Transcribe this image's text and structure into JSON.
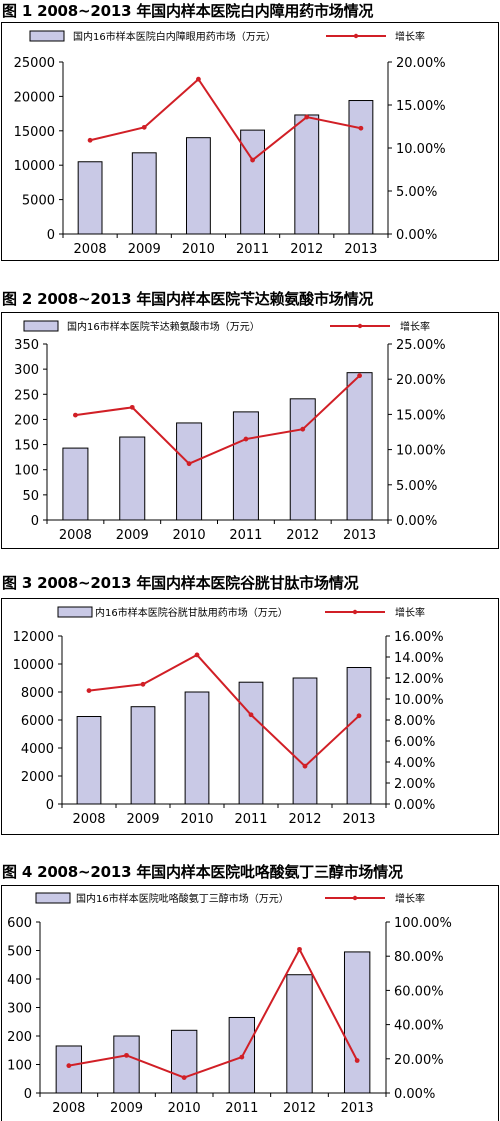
{
  "chart_data": [
    {
      "type": "bar",
      "title": "图 1  2008~2013 年国内样本医院白内障用药市场情况",
      "categories": [
        "2008",
        "2009",
        "2010",
        "2011",
        "2012",
        "2013"
      ],
      "series": [
        {
          "name": "国内16市样本医院白内障眼用药市场（万元）",
          "type": "bar",
          "axis": "left",
          "values": [
            10500,
            11800,
            14000,
            15100,
            17300,
            19400
          ]
        },
        {
          "name": "增长率",
          "type": "line",
          "axis": "right",
          "values": [
            10.9,
            12.4,
            18.0,
            8.6,
            13.6,
            12.3
          ]
        }
      ],
      "y_left": {
        "ylim": [
          0,
          25000
        ],
        "ticks": [
          "0",
          "5000",
          "10000",
          "15000",
          "20000",
          "25000"
        ]
      },
      "y_right": {
        "ylim": [
          0,
          20
        ],
        "ticks": [
          "0.00%",
          "5.00%",
          "10.00%",
          "15.00%",
          "20.00%"
        ]
      },
      "legend": "top"
    },
    {
      "type": "bar",
      "title": "图 2  2008~2013 年国内样本医院苄达赖氨酸市场情况",
      "categories": [
        "2008",
        "2009",
        "2010",
        "2011",
        "2012",
        "2013"
      ],
      "series": [
        {
          "name": "国内16市样本医院苄达赖氨酸市场（万元）",
          "type": "bar",
          "axis": "left",
          "values": [
            143,
            165,
            193,
            215,
            241,
            293
          ]
        },
        {
          "name": "增长率",
          "type": "line",
          "axis": "right",
          "values": [
            14.9,
            16.0,
            8.0,
            11.5,
            12.9,
            20.5
          ]
        }
      ],
      "y_left": {
        "ylim": [
          0,
          350
        ],
        "ticks": [
          "0",
          "50",
          "100",
          "150",
          "200",
          "250",
          "300",
          "350"
        ]
      },
      "y_right": {
        "ylim": [
          0,
          25
        ],
        "ticks": [
          "0.00%",
          "5.00%",
          "10.00%",
          "15.00%",
          "20.00%",
          "25.00%"
        ]
      },
      "legend": "top"
    },
    {
      "type": "bar",
      "title": "图 3  2008~2013 年国内样本医院谷胱甘肽市场情况",
      "categories": [
        "2008",
        "2009",
        "2010",
        "2011",
        "2012",
        "2013"
      ],
      "series": [
        {
          "name": "内16市样本医院谷胱甘肽用药市场（万元）",
          "type": "bar",
          "axis": "left",
          "values": [
            6250,
            6950,
            8000,
            8700,
            9000,
            9750
          ]
        },
        {
          "name": "增长率",
          "type": "line",
          "axis": "right",
          "values": [
            10.8,
            11.4,
            14.2,
            8.5,
            3.6,
            8.4
          ]
        }
      ],
      "y_left": {
        "ylim": [
          0,
          12000
        ],
        "ticks": [
          "0",
          "2000",
          "4000",
          "6000",
          "8000",
          "10000",
          "12000"
        ]
      },
      "y_right": {
        "ylim": [
          0,
          16
        ],
        "ticks": [
          "0.00%",
          "2.00%",
          "4.00%",
          "6.00%",
          "8.00%",
          "10.00%",
          "12.00%",
          "14.00%",
          "16.00%"
        ]
      },
      "legend": "top"
    },
    {
      "type": "bar",
      "title": "图 4  2008~2013 年国内样本医院吡咯酸氨丁三醇市场情况",
      "categories": [
        "2008",
        "2009",
        "2010",
        "2011",
        "2012",
        "2013"
      ],
      "series": [
        {
          "name": "国内16市样本医院吡咯酸氨丁三醇市场（万元）",
          "type": "bar",
          "axis": "left",
          "values": [
            165,
            200,
            220,
            265,
            415,
            495
          ]
        },
        {
          "name": "增长率",
          "type": "line",
          "axis": "right",
          "values": [
            16.0,
            22.0,
            9.0,
            21.0,
            84.0,
            19.0
          ]
        }
      ],
      "y_left": {
        "ylim": [
          0,
          600
        ],
        "ticks": [
          "0",
          "100",
          "200",
          "300",
          "400",
          "500",
          "600"
        ]
      },
      "y_right": {
        "ylim": [
          0,
          100
        ],
        "ticks": [
          "0.00%",
          "20.00%",
          "40.00%",
          "60.00%",
          "80.00%",
          "100.00%"
        ]
      },
      "legend": "top"
    }
  ]
}
